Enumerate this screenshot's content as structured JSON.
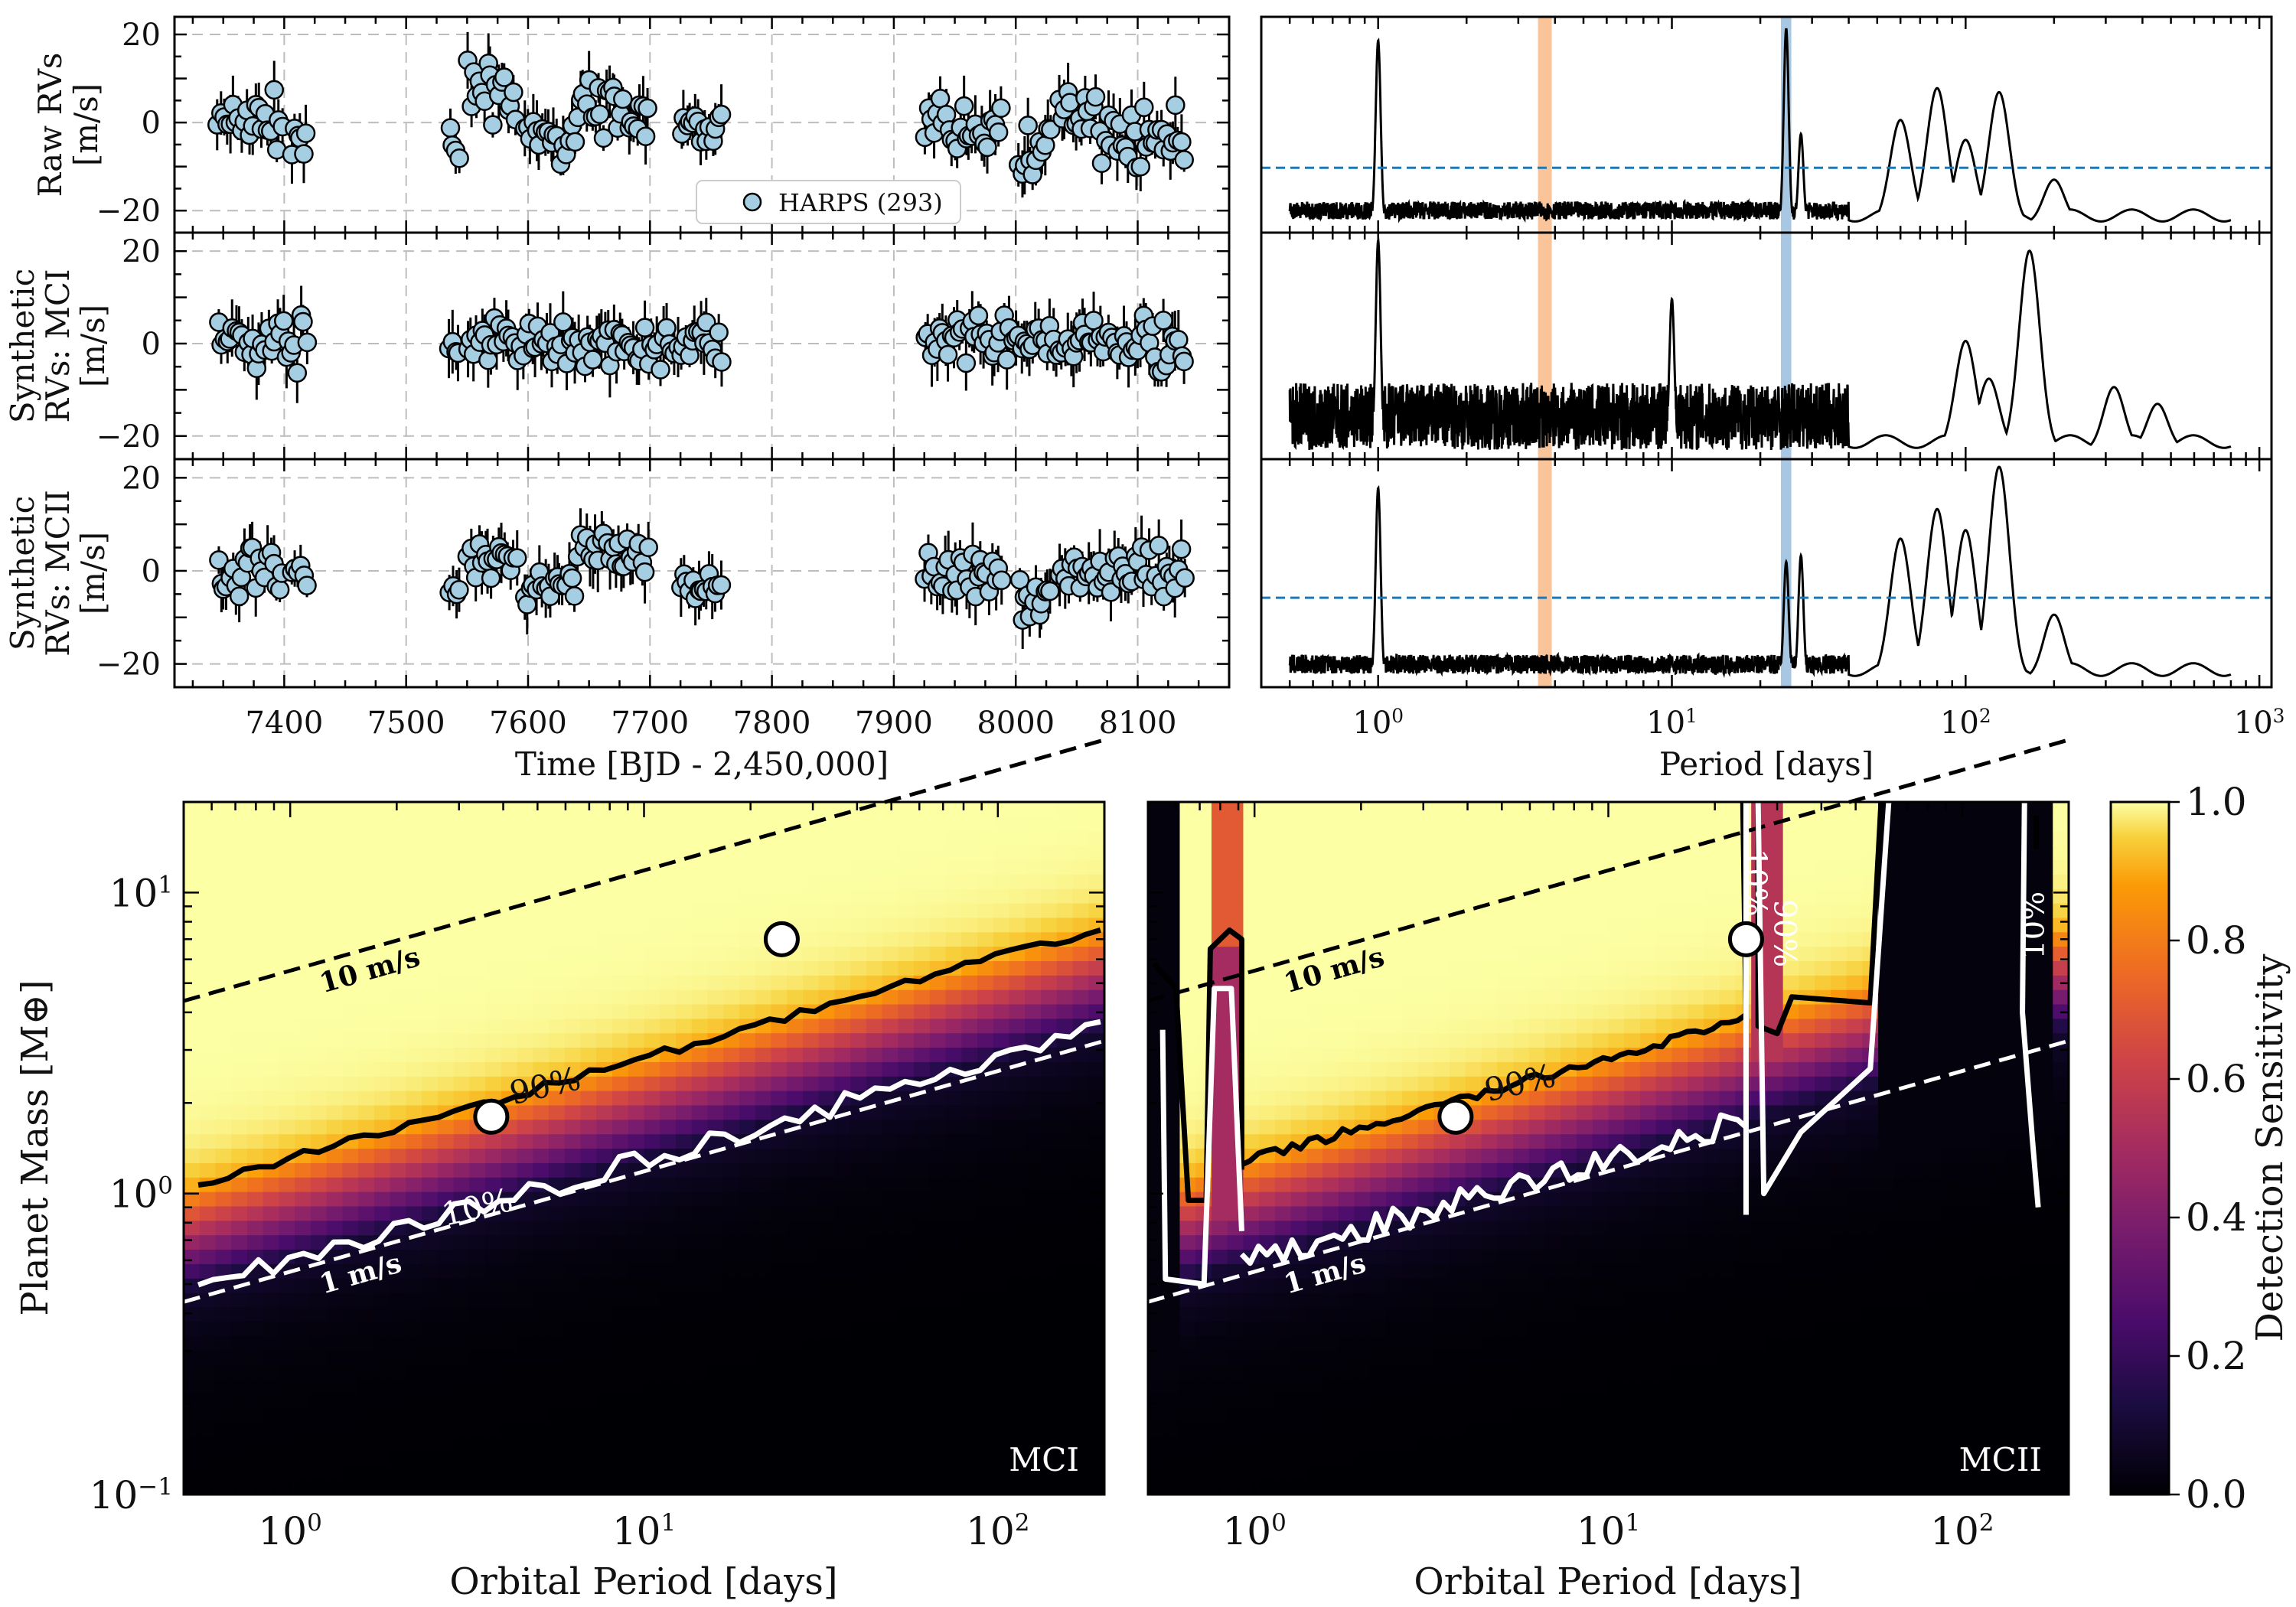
{
  "chart_data": [
    {
      "id": "rv_time_series",
      "type": "scatter",
      "xlabel": "Time [BJD - 2,450,000]",
      "xlim": [
        7310,
        8175
      ],
      "x_ticks": [
        7400,
        7500,
        7600,
        7700,
        7800,
        7900,
        8000,
        8100
      ],
      "ylim": [
        -25,
        24
      ],
      "y_ticks": [
        20,
        0,
        -20
      ],
      "y_tick_labels": [
        "20",
        "0",
        "−20"
      ],
      "grid": true,
      "legend": {
        "entries": [
          "HARPS (293)"
        ],
        "placement": "bottom-center"
      },
      "panels": [
        {
          "ylabel_lines": [
            "Raw RVs",
            "[m/s]"
          ],
          "groups": [
            {
              "t": [
                7345,
                7400
              ],
              "center": 0,
              "spread": 8
            },
            {
              "t": [
                7405,
                7420
              ],
              "center": -3,
              "spread": 6
            },
            {
              "t": [
                7535,
                7545
              ],
              "center": -8,
              "spread": 7
            },
            {
              "t": [
                7550,
                7592
              ],
              "center": 7,
              "spread": 8
            },
            {
              "t": [
                7596,
                7640
              ],
              "center": -4,
              "spread": 7
            },
            {
              "t": [
                7640,
                7680
              ],
              "center": 4,
              "spread": 8
            },
            {
              "t": [
                7682,
                7700
              ],
              "center": -2,
              "spread": 8
            },
            {
              "t": [
                7725,
                7760
              ],
              "center": -1,
              "spread": 5
            },
            {
              "t": [
                7925,
                7990
              ],
              "center": -1,
              "spread": 8
            },
            {
              "t": [
                8002,
                8030
              ],
              "center": -6,
              "spread": 9
            },
            {
              "t": [
                8035,
                8070
              ],
              "center": 3,
              "spread": 6
            },
            {
              "t": [
                8070,
                8140
              ],
              "center": -3,
              "spread": 7
            }
          ]
        },
        {
          "ylabel_lines": [
            "Synthetic",
            "RVs: MCI",
            "[m/s]"
          ],
          "groups": [
            {
              "t": [
                7345,
                7420
              ],
              "center": 0,
              "spread": 8
            },
            {
              "t": [
                7535,
                7545
              ],
              "center": -1,
              "spread": 5
            },
            {
              "t": [
                7550,
                7760
              ],
              "center": 0,
              "spread": 6
            },
            {
              "t": [
                7925,
                8140
              ],
              "center": 0,
              "spread": 7
            }
          ]
        },
        {
          "ylabel_lines": [
            "Synthetic",
            "RVs: MCII",
            "[m/s]"
          ],
          "groups": [
            {
              "t": [
                7345,
                7400
              ],
              "center": 0,
              "spread": 7
            },
            {
              "t": [
                7405,
                7420
              ],
              "center": 0,
              "spread": 4
            },
            {
              "t": [
                7535,
                7545
              ],
              "center": -4,
              "spread": 5
            },
            {
              "t": [
                7550,
                7592
              ],
              "center": 3,
              "spread": 6
            },
            {
              "t": [
                7596,
                7640
              ],
              "center": -4,
              "spread": 5
            },
            {
              "t": [
                7640,
                7700
              ],
              "center": 4,
              "spread": 6
            },
            {
              "t": [
                7725,
                7760
              ],
              "center": -3,
              "spread": 4
            },
            {
              "t": [
                7925,
                7990
              ],
              "center": -1,
              "spread": 6
            },
            {
              "t": [
                8002,
                8030
              ],
              "center": -6,
              "spread": 6
            },
            {
              "t": [
                8035,
                8140
              ],
              "center": 0,
              "spread": 6
            }
          ]
        }
      ]
    },
    {
      "id": "periodograms",
      "type": "line",
      "xlabel": "Period [days]",
      "xscale": "log",
      "xlim": [
        0.4,
        1100
      ],
      "x_ticks": [
        1,
        10,
        100,
        1000
      ],
      "x_tick_labels": [
        [
          "10",
          "0"
        ],
        [
          "10",
          "1"
        ],
        [
          "10",
          "2"
        ],
        [
          "10",
          "3"
        ]
      ],
      "highlight_bands": [
        {
          "from": 3.5,
          "to": 3.9,
          "color": "#f9c49a"
        },
        {
          "from": 23.5,
          "to": 25.5,
          "color": "#a7c7e3"
        }
      ],
      "panels": [
        {
          "fap_level": 0.28,
          "peaks": [
            [
              1.0,
              0.92
            ],
            [
              24.5,
              0.98
            ],
            [
              27.5,
              0.45
            ],
            [
              60,
              0.52
            ],
            [
              80,
              0.68
            ],
            [
              100,
              0.42
            ],
            [
              130,
              0.66
            ],
            [
              200,
              0.22
            ]
          ]
        },
        {
          "fap_level": null,
          "peaks": [
            [
              1.0,
              1.0
            ],
            [
              10,
              0.72
            ],
            [
              100,
              0.52
            ],
            [
              120,
              0.34
            ],
            [
              165,
              0.95
            ],
            [
              320,
              0.3
            ],
            [
              450,
              0.22
            ]
          ]
        },
        {
          "fap_level": 0.38,
          "peaks": [
            [
              1.0,
              0.9
            ],
            [
              24.5,
              0.55
            ],
            [
              27.5,
              0.58
            ],
            [
              60,
              0.66
            ],
            [
              80,
              0.8
            ],
            [
              100,
              0.7
            ],
            [
              130,
              1.0
            ],
            [
              200,
              0.3
            ]
          ]
        }
      ]
    },
    {
      "id": "sensitivity_MCI",
      "type": "heatmap",
      "panel_label": "MCI",
      "xlabel": "Orbital Period [days]",
      "ylabel": "Planet Mass [M⊕]",
      "xscale": "log",
      "yscale": "log",
      "xlim": [
        0.5,
        200
      ],
      "ylim": [
        0.1,
        20
      ],
      "x_ticks": [
        1,
        10,
        100
      ],
      "x_tick_labels": [
        [
          "10",
          "0"
        ],
        [
          "10",
          "1"
        ],
        [
          "10",
          "2"
        ]
      ],
      "y_ticks": [
        0.1,
        1,
        10
      ],
      "y_tick_labels": [
        [
          "10",
          "−1"
        ],
        [
          "10",
          "0"
        ],
        [
          "10",
          "1"
        ]
      ],
      "threshold_90_mass_at_1day": 1.31,
      "threshold_10_mass_at_1day": 0.6,
      "contour_labels": [
        "90%",
        "10%"
      ],
      "rv_lines": [
        {
          "label": "10 m/s",
          "mass_at_1day": 5.5
        },
        {
          "label": "1 m/s",
          "mass_at_1day": 0.55
        }
      ],
      "planets": [
        {
          "period": 3.7,
          "mass": 1.8
        },
        {
          "period": 24.5,
          "mass": 7.0
        }
      ]
    },
    {
      "id": "sensitivity_MCII",
      "type": "heatmap",
      "panel_label": "MCII",
      "xlabel": "Orbital Period [days]",
      "xscale": "log",
      "yscale": "log",
      "xlim": [
        0.5,
        200
      ],
      "ylim": [
        0.1,
        20
      ],
      "x_ticks": [
        1,
        10,
        100
      ],
      "x_tick_labels": [
        [
          "10",
          "0"
        ],
        [
          "10",
          "1"
        ],
        [
          "10",
          "2"
        ]
      ],
      "threshold_90_mass_at_1day": 1.31,
      "threshold_10_mass_at_1day": 0.6,
      "contour_labels": [
        "90%",
        "10%",
        "90%",
        "10%"
      ],
      "rv_lines": [
        {
          "label": "10 m/s",
          "mass_at_1day": 5.5
        },
        {
          "label": "1 m/s",
          "mass_at_1day": 0.55
        }
      ],
      "planets": [
        {
          "period": 3.7,
          "mass": 1.8
        },
        {
          "period": 24.5,
          "mass": 7.0
        }
      ]
    }
  ],
  "colorbar": {
    "label": "Detection Sensitivity",
    "ticks": [
      1.0,
      0.8,
      0.6,
      0.4,
      0.2,
      0.0
    ],
    "tick_labels": [
      "1.0",
      "0.8",
      "0.6",
      "0.4",
      "0.2",
      "0.0"
    ],
    "colormap": "inferno"
  }
}
